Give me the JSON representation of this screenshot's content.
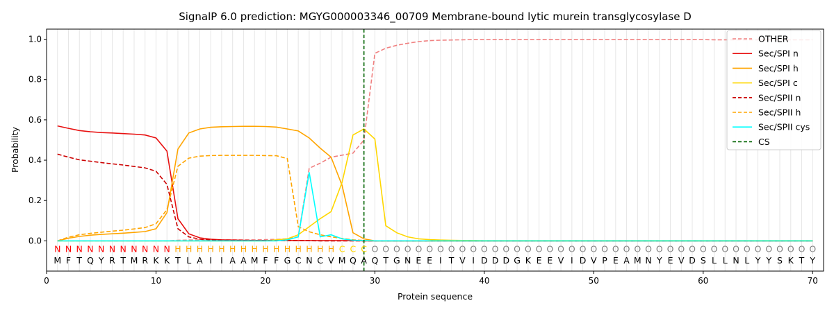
{
  "chart_data": {
    "type": "line",
    "title": "SignalP 6.0 prediction: MGYG000003346_00709 Membrane-bound lytic murein transglycosylase D",
    "xlabel": "Protein sequence",
    "ylabel": "Probability",
    "xlim": [
      0,
      71
    ],
    "ylim": [
      -0.15,
      1.05
    ],
    "x_ticks": [
      0,
      10,
      20,
      30,
      40,
      50,
      60,
      70
    ],
    "y_ticks": [
      0.0,
      0.2,
      0.4,
      0.6,
      0.8,
      1.0
    ],
    "x_tick_labels": [
      "0",
      "10",
      "20",
      "30",
      "40",
      "50",
      "60",
      "70"
    ],
    "y_tick_labels": [
      "0.0",
      "0.2",
      "0.4",
      "0.6",
      "0.8",
      "1.0"
    ],
    "grid": "vertical lines at each residue",
    "legend_position": "top-right",
    "sequence": [
      "M",
      "F",
      "T",
      "Q",
      "Y",
      "R",
      "T",
      "M",
      "R",
      "K",
      "K",
      "T",
      "L",
      "A",
      "I",
      "I",
      "A",
      "A",
      "M",
      "F",
      "F",
      "G",
      "C",
      "N",
      "C",
      "V",
      "M",
      "Q",
      "A",
      "Q",
      "T",
      "G",
      "N",
      "E",
      "E",
      "I",
      "T",
      "V",
      "I",
      "D",
      "D",
      "D",
      "G",
      "K",
      "E",
      "E",
      "V",
      "I",
      "D",
      "V",
      "P",
      "E",
      "A",
      "M",
      "N",
      "Y",
      "E",
      "V",
      "D",
      "S",
      "L",
      "L",
      "N",
      "L",
      "Y",
      "Y",
      "S",
      "K",
      "T",
      "Y"
    ],
    "region_labels": [
      "N",
      "N",
      "N",
      "N",
      "N",
      "N",
      "N",
      "N",
      "N",
      "N",
      "N",
      "H",
      "H",
      "H",
      "H",
      "H",
      "H",
      "H",
      "H",
      "H",
      "H",
      "H",
      "H",
      "H",
      "H",
      "H",
      "C",
      "C",
      "C",
      "O",
      "O",
      "O",
      "O",
      "O",
      "O",
      "O",
      "O",
      "O",
      "O",
      "O",
      "O",
      "O",
      "O",
      "O",
      "O",
      "O",
      "O",
      "O",
      "O",
      "O",
      "O",
      "O",
      "O",
      "O",
      "O",
      "O",
      "O",
      "O",
      "O",
      "O",
      "O",
      "O",
      "O",
      "O",
      "O",
      "O",
      "O",
      "O",
      "O",
      "O"
    ],
    "region_colors": {
      "N": "#ff0000",
      "H": "#ffa500",
      "C": "#ffd700",
      "O": "#808080"
    },
    "cs_position": 29,
    "series": [
      {
        "name": "OTHER",
        "color": "#f08080",
        "dash": "dashed",
        "values": [
          0.0,
          0.0,
          0.0,
          0.0,
          0.0,
          0.0,
          0.0,
          0.0,
          0.0,
          0.0,
          0.0,
          0.003,
          0.004,
          0.005,
          0.005,
          0.005,
          0.005,
          0.005,
          0.005,
          0.006,
          0.007,
          0.01,
          0.02,
          0.36,
          0.385,
          0.415,
          0.425,
          0.435,
          0.5,
          0.93,
          0.955,
          0.97,
          0.98,
          0.988,
          0.993,
          0.995,
          0.996,
          0.997,
          0.998,
          0.998,
          0.998,
          0.998,
          0.998,
          0.998,
          0.998,
          0.998,
          0.998,
          0.998,
          0.998,
          0.998,
          0.998,
          0.998,
          0.998,
          0.998,
          0.998,
          0.998,
          0.998,
          0.998,
          0.998,
          0.998,
          0.997,
          0.997,
          0.997,
          0.997,
          0.997,
          0.997,
          0.997,
          0.997,
          0.997,
          0.997
        ]
      },
      {
        "name": "Sec/SPI n",
        "color": "#e81010",
        "dash": "solid",
        "values": [
          0.57,
          0.558,
          0.547,
          0.541,
          0.537,
          0.535,
          0.532,
          0.529,
          0.525,
          0.51,
          0.445,
          0.11,
          0.035,
          0.015,
          0.008,
          0.005,
          0.004,
          0.003,
          0.002,
          0.002,
          0.002,
          0.002,
          0.001,
          0.001,
          0.001,
          0.001,
          0.001,
          0.001,
          0.0,
          0.0,
          0.0,
          0.0,
          0.0,
          0.0,
          0.0,
          0.0,
          0.0,
          0.0,
          0.0,
          0.0,
          0.0,
          0.0,
          0.0,
          0.0,
          0.0,
          0.0,
          0.0,
          0.0,
          0.0,
          0.0,
          0.0,
          0.0,
          0.0,
          0.0,
          0.0,
          0.0,
          0.0,
          0.0,
          0.0,
          0.0,
          0.0,
          0.0,
          0.0,
          0.0,
          0.0,
          0.0,
          0.0,
          0.0,
          0.0,
          0.0
        ]
      },
      {
        "name": "Sec/SPI h",
        "color": "#ffa500",
        "dash": "solid",
        "values": [
          0.0,
          0.013,
          0.022,
          0.028,
          0.032,
          0.035,
          0.038,
          0.042,
          0.046,
          0.06,
          0.14,
          0.455,
          0.535,
          0.555,
          0.563,
          0.566,
          0.567,
          0.568,
          0.568,
          0.567,
          0.564,
          0.555,
          0.545,
          0.51,
          0.46,
          0.415,
          0.275,
          0.04,
          0.01,
          0.0,
          0.0,
          0.0,
          0.0,
          0.0,
          0.0,
          0.0,
          0.0,
          0.0,
          0.0,
          0.0,
          0.0,
          0.0,
          0.0,
          0.0,
          0.0,
          0.0,
          0.0,
          0.0,
          0.0,
          0.0,
          0.0,
          0.0,
          0.0,
          0.0,
          0.0,
          0.0,
          0.0,
          0.0,
          0.0,
          0.0,
          0.0,
          0.0,
          0.0,
          0.0,
          0.0,
          0.0,
          0.0,
          0.0,
          0.0,
          0.0
        ]
      },
      {
        "name": "Sec/SPI c",
        "color": "#ffd700",
        "dash": "solid",
        "values": [
          0.0,
          0.0,
          0.0,
          0.0,
          0.0,
          0.0,
          0.0,
          0.0,
          0.0,
          0.0,
          0.0,
          0.0,
          0.0,
          0.0,
          0.0,
          0.0,
          0.0,
          0.0,
          0.0,
          0.0,
          0.005,
          0.01,
          0.03,
          0.07,
          0.11,
          0.145,
          0.29,
          0.525,
          0.555,
          0.505,
          0.075,
          0.04,
          0.02,
          0.01,
          0.006,
          0.004,
          0.003,
          0.002,
          0.002,
          0.001,
          0.001,
          0.001,
          0.001,
          0.001,
          0.001,
          0.001,
          0.001,
          0.001,
          0.001,
          0.001,
          0.001,
          0.001,
          0.001,
          0.001,
          0.001,
          0.001,
          0.001,
          0.001,
          0.001,
          0.001,
          0.001,
          0.001,
          0.001,
          0.001,
          0.001,
          0.001,
          0.001,
          0.001,
          0.001,
          0.001
        ]
      },
      {
        "name": "Sec/SPII n",
        "color": "#cc0000",
        "dash": "dashed",
        "values": [
          0.43,
          0.415,
          0.402,
          0.395,
          0.388,
          0.382,
          0.376,
          0.369,
          0.362,
          0.345,
          0.28,
          0.06,
          0.02,
          0.008,
          0.005,
          0.003,
          0.002,
          0.002,
          0.001,
          0.001,
          0.001,
          0.001,
          0.001,
          0.001,
          0.0,
          0.0,
          0.0,
          0.0,
          0.0,
          0.0,
          0.0,
          0.0,
          0.0,
          0.0,
          0.0,
          0.0,
          0.0,
          0.0,
          0.0,
          0.0,
          0.0,
          0.0,
          0.0,
          0.0,
          0.0,
          0.0,
          0.0,
          0.0,
          0.0,
          0.0,
          0.0,
          0.0,
          0.0,
          0.0,
          0.0,
          0.0,
          0.0,
          0.0,
          0.0,
          0.0,
          0.0,
          0.0,
          0.0,
          0.0,
          0.0,
          0.0,
          0.0,
          0.0,
          0.0,
          0.0
        ]
      },
      {
        "name": "Sec/SPII h",
        "color": "#ffa500",
        "dash": "dashed",
        "values": [
          0.0,
          0.018,
          0.03,
          0.037,
          0.043,
          0.048,
          0.053,
          0.059,
          0.066,
          0.085,
          0.155,
          0.37,
          0.41,
          0.42,
          0.423,
          0.424,
          0.424,
          0.424,
          0.424,
          0.423,
          0.422,
          0.408,
          0.07,
          0.045,
          0.03,
          0.02,
          0.012,
          0.005,
          0.002,
          0.0,
          0.0,
          0.0,
          0.0,
          0.0,
          0.0,
          0.0,
          0.0,
          0.0,
          0.0,
          0.0,
          0.0,
          0.0,
          0.0,
          0.0,
          0.0,
          0.0,
          0.0,
          0.0,
          0.0,
          0.0,
          0.0,
          0.0,
          0.0,
          0.0,
          0.0,
          0.0,
          0.0,
          0.0,
          0.0,
          0.0,
          0.0,
          0.0,
          0.0,
          0.0,
          0.0,
          0.0,
          0.0,
          0.0,
          0.0,
          0.0
        ]
      },
      {
        "name": "Sec/SPII cys",
        "color": "#00ffff",
        "dash": "solid",
        "values": [
          0.0,
          0.0,
          0.0,
          0.0,
          0.0,
          0.0,
          0.0,
          0.0,
          0.0,
          0.0,
          0.0,
          0.0,
          0.0,
          0.0,
          0.0,
          0.0,
          0.0,
          0.0,
          0.0,
          0.0,
          0.0,
          0.005,
          0.02,
          0.34,
          0.02,
          0.03,
          0.01,
          0.003,
          0.001,
          0.0,
          0.0,
          0.0,
          0.0,
          0.0,
          0.0,
          0.0,
          0.0,
          0.0,
          0.0,
          0.0,
          0.0,
          0.0,
          0.0,
          0.0,
          0.0,
          0.0,
          0.0,
          0.0,
          0.0,
          0.0,
          0.0,
          0.0,
          0.0,
          0.0,
          0.0,
          0.0,
          0.0,
          0.0,
          0.0,
          0.0,
          0.0,
          0.0,
          0.0,
          0.0,
          0.0,
          0.0,
          0.0,
          0.0,
          0.0,
          0.0
        ]
      },
      {
        "name": "CS",
        "color": "#006400",
        "dash": "dashed",
        "values": []
      }
    ]
  }
}
